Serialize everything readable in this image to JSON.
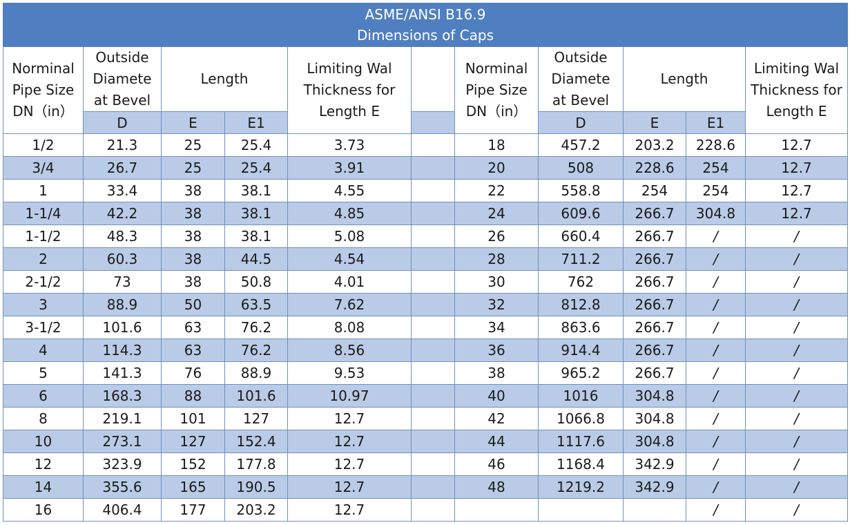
{
  "title": "ASME/ANSI B16.9",
  "subtitle": "Dimensions of Caps",
  "headers": {
    "nps": [
      "Norminal",
      "Pipe Size",
      "DN（in）"
    ],
    "od": [
      "Outside",
      "Diamete",
      "at Bevel"
    ],
    "length": "Length",
    "limit": [
      "Limiting Wal",
      "Thickness for",
      "Length E"
    ],
    "d": "D",
    "e": "E",
    "e1": "E1"
  },
  "rows": [
    {
      "l": [
        "1/2",
        "21.3",
        "25",
        "25.4",
        "3.73"
      ],
      "r": [
        "18",
        "457.2",
        "203.2",
        "228.6",
        "12.7"
      ]
    },
    {
      "l": [
        "3/4",
        "26.7",
        "25",
        "25.4",
        "3.91"
      ],
      "r": [
        "20",
        "508",
        "228.6",
        "254",
        "12.7"
      ]
    },
    {
      "l": [
        "1",
        "33.4",
        "38",
        "38.1",
        "4.55"
      ],
      "r": [
        "22",
        "558.8",
        "254",
        "254",
        "12.7"
      ]
    },
    {
      "l": [
        "1-1/4",
        "42.2",
        "38",
        "38.1",
        "4.85"
      ],
      "r": [
        "24",
        "609.6",
        "266.7",
        "304.8",
        "12.7"
      ]
    },
    {
      "l": [
        "1-1/2",
        "48.3",
        "38",
        "38.1",
        "5.08"
      ],
      "r": [
        "26",
        "660.4",
        "266.7",
        "/",
        "/"
      ]
    },
    {
      "l": [
        "2",
        "60.3",
        "38",
        "44.5",
        "4.54"
      ],
      "r": [
        "28",
        "711.2",
        "266.7",
        "/",
        "/"
      ]
    },
    {
      "l": [
        "2-1/2",
        "73",
        "38",
        "50.8",
        "4.01"
      ],
      "r": [
        "30",
        "762",
        "266.7",
        "/",
        "/"
      ]
    },
    {
      "l": [
        "3",
        "88.9",
        "50",
        "63.5",
        "7.62"
      ],
      "r": [
        "32",
        "812.8",
        "266.7",
        "/",
        "/"
      ]
    },
    {
      "l": [
        "3-1/2",
        "101.6",
        "63",
        "76.2",
        "8.08"
      ],
      "r": [
        "34",
        "863.6",
        "266.7",
        "/",
        "/"
      ]
    },
    {
      "l": [
        "4",
        "114.3",
        "63",
        "76.2",
        "8.56"
      ],
      "r": [
        "36",
        "914.4",
        "266.7",
        "/",
        "/"
      ]
    },
    {
      "l": [
        "5",
        "141.3",
        "76",
        "88.9",
        "9.53"
      ],
      "r": [
        "38",
        "965.2",
        "266.7",
        "/",
        "/"
      ]
    },
    {
      "l": [
        "6",
        "168.3",
        "88",
        "101.6",
        "10.97"
      ],
      "r": [
        "40",
        "1016",
        "304.8",
        "/",
        "/"
      ]
    },
    {
      "l": [
        "8",
        "219.1",
        "101",
        "127",
        "12.7"
      ],
      "r": [
        "42",
        "1066.8",
        "304.8",
        "/",
        "/"
      ]
    },
    {
      "l": [
        "10",
        "273.1",
        "127",
        "152.4",
        "12.7"
      ],
      "r": [
        "44",
        "1117.6",
        "304.8",
        "/",
        "/"
      ]
    },
    {
      "l": [
        "12",
        "323.9",
        "152",
        "177.8",
        "12.7"
      ],
      "r": [
        "46",
        "1168.4",
        "342.9",
        "/",
        "/"
      ]
    },
    {
      "l": [
        "14",
        "355.6",
        "165",
        "190.5",
        "12.7"
      ],
      "r": [
        "48",
        "1219.2",
        "342.9",
        "/",
        "/"
      ]
    },
    {
      "l": [
        "16",
        "406.4",
        "177",
        "203.2",
        "12.7"
      ],
      "r": [
        "",
        "",
        "",
        "/",
        "/"
      ]
    }
  ]
}
